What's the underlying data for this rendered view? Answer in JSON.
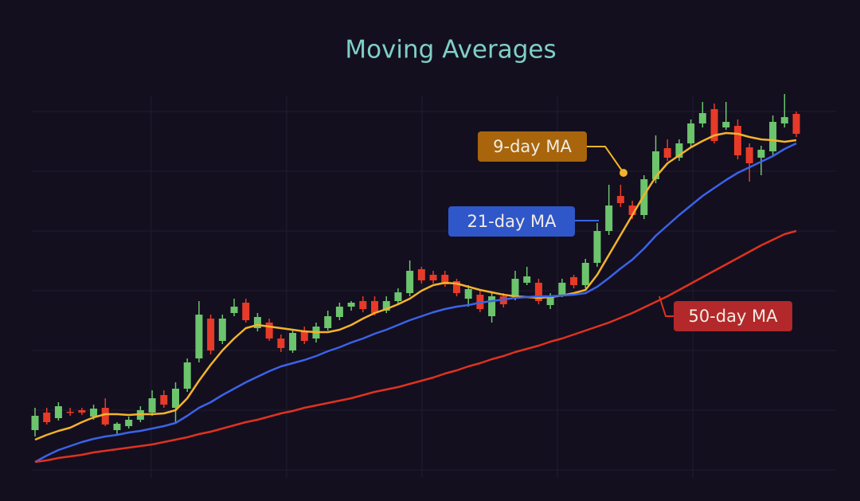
{
  "chart_data": {
    "type": "candlestick",
    "title": "Moving Averages",
    "ylim": [
      0,
      100
    ],
    "up_color": "#6cc46c",
    "down_color": "#e83a28",
    "grid": true,
    "open": [
      12,
      16.4,
      15,
      16.6,
      17,
      15.4,
      17.6,
      12,
      13,
      14.6,
      16.4,
      20.8,
      17.6,
      22.4,
      30,
      40,
      34.4,
      41.4,
      44,
      37.6,
      39,
      35,
      32,
      37,
      35,
      37.6,
      40.4,
      43,
      44.4,
      44.4,
      42,
      44.4,
      46.4,
      52.4,
      51,
      51,
      49.4,
      45,
      46,
      40.6,
      45.6,
      45.4,
      49,
      49,
      43.4,
      46,
      50.4,
      48.4,
      54,
      62,
      70.8,
      68.4,
      66,
      75,
      82.8,
      80.4,
      84,
      89,
      92.6,
      88,
      88.4,
      83,
      80.4,
      82,
      89,
      91.4
    ],
    "high": [
      17.6,
      17.6,
      19,
      17.6,
      17.6,
      18.4,
      20,
      14,
      15.4,
      18,
      22,
      22,
      24,
      30,
      44.4,
      41,
      41,
      45,
      45,
      41.4,
      40,
      36,
      37,
      38,
      39,
      42,
      44,
      44.4,
      45.6,
      45.6,
      45.6,
      47.6,
      54.6,
      53,
      52,
      52,
      50,
      48.4,
      47,
      46.4,
      46.4,
      52,
      53,
      50,
      46.4,
      50,
      51,
      55,
      64,
      73.6,
      73.6,
      69.6,
      76,
      86,
      85,
      85,
      90,
      94.4,
      94,
      94.4,
      90,
      84,
      83.4,
      91,
      96.4,
      92
    ],
    "low": [
      10.4,
      13.4,
      14.4,
      15.6,
      15.8,
      14.6,
      13,
      10.8,
      12.4,
      14,
      15.6,
      17.6,
      13.6,
      21.6,
      29,
      31,
      33.6,
      40.6,
      39,
      36.8,
      34.4,
      31.6,
      31.4,
      33.6,
      34,
      37,
      39.6,
      42,
      41.6,
      40.8,
      41.4,
      43.8,
      45.6,
      48.8,
      48.8,
      48,
      45.6,
      43,
      41.6,
      39,
      42.8,
      44.6,
      48.4,
      43.6,
      42.4,
      45.4,
      47.6,
      47.6,
      53,
      61,
      68,
      65,
      65,
      74,
      79.6,
      79.6,
      83,
      88,
      84,
      87.4,
      80,
      74.4,
      76,
      81,
      88,
      85.6
    ],
    "close": [
      15.6,
      14,
      18,
      16.4,
      16.4,
      17.4,
      13.4,
      13.6,
      14.6,
      17,
      20,
      18.4,
      22.4,
      29,
      41,
      32,
      40,
      43,
      39.6,
      40.4,
      35,
      32.6,
      36.4,
      34.4,
      38,
      40.6,
      43,
      44,
      42.4,
      41.4,
      44.4,
      46.6,
      52,
      49.6,
      49.6,
      48.6,
      46.4,
      47.4,
      42.4,
      45.6,
      43.6,
      50,
      50.6,
      44.4,
      45.4,
      49,
      48.4,
      54,
      62,
      68.4,
      69,
      66,
      75,
      82,
      80.4,
      84,
      89,
      91.6,
      84.6,
      89.4,
      81,
      79,
      82.4,
      89.4,
      90.6,
      86.4
    ],
    "series": [
      {
        "name": "9-day MA",
        "color": "#f4b32a",
        "label_color": "#a8650c",
        "values": [
          9.6,
          10.8,
          11.8,
          12.6,
          14,
          15.2,
          16,
          16,
          15.8,
          16,
          16,
          16.2,
          17,
          20,
          24.4,
          28.4,
          32,
          35,
          37.6,
          38.4,
          38,
          37.6,
          37.2,
          36.8,
          36.6,
          36.6,
          37.2,
          38.4,
          40,
          41.4,
          42.4,
          43.6,
          45,
          47,
          48.4,
          49,
          48.8,
          48,
          47.2,
          46.6,
          46,
          45.6,
          45.4,
          45.2,
          45.4,
          45.8,
          46.4,
          47.2,
          51,
          56,
          61,
          66,
          71,
          75.6,
          79,
          81,
          83,
          84.6,
          86,
          86.6,
          86.4,
          85.6,
          85,
          84.8,
          84.4,
          84.8
        ]
      },
      {
        "name": "21-day MA",
        "color": "#3b63e8",
        "label_color": "#2f57c9",
        "values": [
          4,
          5.6,
          7,
          8,
          9,
          9.8,
          10.4,
          10.8,
          11.4,
          11.8,
          12.4,
          13,
          13.8,
          15.6,
          17.6,
          19,
          20.8,
          22.4,
          24,
          25.4,
          26.8,
          28,
          28.8,
          29.6,
          30.6,
          31.8,
          32.8,
          34,
          35,
          36.2,
          37.2,
          38.4,
          39.6,
          40.6,
          41.6,
          42.4,
          43,
          43.4,
          44,
          44.4,
          44.8,
          45.2,
          45.4,
          45.6,
          45.6,
          45.8,
          46,
          46.4,
          48,
          50.2,
          52.6,
          54.8,
          57.6,
          60.8,
          63.4,
          66,
          68.4,
          70.8,
          72.8,
          74.8,
          76.6,
          78,
          79.4,
          80.8,
          82.6,
          84
        ]
      },
      {
        "name": "50-day MA",
        "color": "#e0321f",
        "label_color": "#b3282a",
        "values": [
          4,
          4.4,
          5,
          5.4,
          5.8,
          6.4,
          6.8,
          7.2,
          7.6,
          8,
          8.4,
          9,
          9.6,
          10.2,
          11,
          11.6,
          12.4,
          13.2,
          14,
          14.6,
          15.4,
          16.2,
          16.8,
          17.6,
          18.2,
          18.8,
          19.4,
          20,
          20.8,
          21.6,
          22.2,
          22.8,
          23.6,
          24.4,
          25.2,
          26.2,
          27,
          28,
          28.8,
          29.8,
          30.6,
          31.6,
          32.4,
          33.2,
          34.2,
          35,
          36,
          37,
          38,
          39,
          40.2,
          41.4,
          42.8,
          44.2,
          45.6,
          47.2,
          48.8,
          50.4,
          52,
          53.6,
          55.2,
          56.8,
          58.4,
          59.8,
          61.2,
          62
        ]
      }
    ]
  }
}
